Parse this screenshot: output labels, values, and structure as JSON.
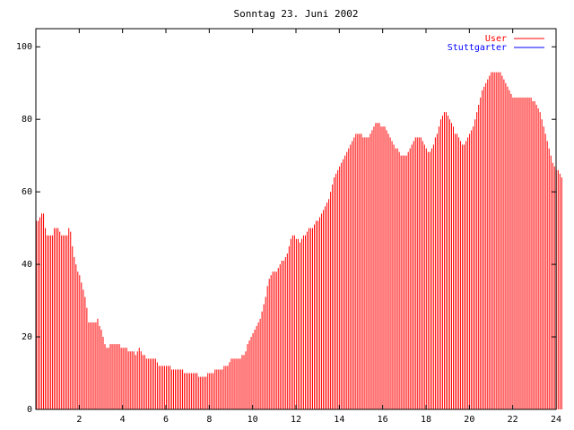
{
  "chart_data": {
    "type": "bar",
    "title": "Sonntag 23. Juni 2002",
    "xlabel": "",
    "ylabel": "",
    "xlim": [
      0,
      24
    ],
    "ylim": [
      0,
      105
    ],
    "x_ticks": [
      2,
      4,
      6,
      8,
      10,
      12,
      14,
      16,
      18,
      20,
      22,
      24
    ],
    "y_ticks": [
      0,
      20,
      40,
      60,
      80,
      100
    ],
    "grid": false,
    "legend_position": "top-right",
    "bar_interval_hours": 0.0833,
    "series": [
      {
        "name": "User",
        "color": "#ff0000",
        "values": [
          52,
          52,
          53,
          54,
          54,
          50,
          48,
          48,
          48,
          48,
          50,
          50,
          50,
          49,
          48,
          48,
          48,
          48,
          50,
          49,
          45,
          42,
          40,
          38,
          37,
          35,
          33,
          31,
          28,
          24,
          24,
          24,
          24,
          24,
          25,
          23,
          22,
          20,
          18,
          17,
          17,
          18,
          18,
          18,
          18,
          18,
          18,
          17,
          17,
          17,
          17,
          16,
          16,
          16,
          16,
          15,
          16,
          17,
          16,
          15,
          15,
          14,
          14,
          14,
          14,
          14,
          14,
          13,
          12,
          12,
          12,
          12,
          12,
          12,
          12,
          11,
          11,
          11,
          11,
          11,
          11,
          11,
          10,
          10,
          10,
          10,
          10,
          10,
          10,
          10,
          9,
          9,
          9,
          9,
          9,
          10,
          10,
          10,
          10,
          11,
          11,
          11,
          11,
          11,
          12,
          12,
          12,
          13,
          14,
          14,
          14,
          14,
          14,
          14,
          15,
          15,
          16,
          18,
          19,
          20,
          21,
          22,
          23,
          24,
          25,
          27,
          29,
          31,
          34,
          36,
          37,
          38,
          38,
          38,
          39,
          40,
          41,
          41,
          42,
          43,
          45,
          47,
          48,
          48,
          47,
          47,
          46,
          47,
          48,
          48,
          49,
          50,
          50,
          50,
          51,
          52,
          52,
          53,
          54,
          55,
          56,
          57,
          58,
          60,
          62,
          64,
          65,
          66,
          67,
          68,
          69,
          70,
          71,
          72,
          73,
          74,
          75,
          76,
          76,
          76,
          76,
          75,
          75,
          75,
          75,
          76,
          77,
          78,
          79,
          79,
          79,
          78,
          78,
          78,
          77,
          76,
          75,
          74,
          73,
          72,
          72,
          71,
          70,
          70,
          70,
          70,
          71,
          72,
          73,
          74,
          75,
          75,
          75,
          75,
          74,
          73,
          72,
          71,
          71,
          72,
          73,
          75,
          76,
          78,
          80,
          81,
          82,
          82,
          81,
          80,
          79,
          78,
          76,
          76,
          75,
          74,
          73,
          73,
          74,
          75,
          76,
          77,
          78,
          80,
          82,
          84,
          86,
          88,
          89,
          90,
          91,
          92,
          93,
          93,
          93,
          93,
          93,
          93,
          92,
          91,
          90,
          89,
          88,
          87,
          86,
          86,
          86,
          86,
          86,
          86,
          86,
          86,
          86,
          86,
          86,
          85,
          85,
          84,
          83,
          82,
          80,
          78,
          76,
          74,
          72,
          70,
          68,
          67,
          66,
          66,
          65,
          64
        ]
      },
      {
        "name": "Stuttgarter",
        "color": "#0000ff",
        "values": [
          0,
          0,
          0,
          0,
          0,
          0,
          0,
          0,
          0,
          0,
          0,
          0,
          0,
          0,
          0,
          0,
          0,
          0,
          0,
          0,
          0,
          0,
          0,
          0,
          0,
          0,
          0,
          0,
          0,
          0,
          0,
          0,
          0,
          0,
          0,
          0,
          0,
          0,
          0,
          0,
          0,
          0,
          0,
          0,
          0,
          0,
          0,
          0,
          0,
          0,
          0,
          0,
          0,
          0,
          0,
          0,
          0,
          0,
          0,
          0,
          0,
          0,
          0,
          0,
          0,
          0,
          0,
          0,
          0,
          0,
          0,
          0,
          0,
          0,
          0,
          0,
          0,
          0,
          0,
          0,
          0,
          0,
          0,
          0,
          0,
          0,
          0,
          0,
          0,
          0,
          0,
          0,
          0,
          0,
          0,
          0,
          0,
          0,
          0,
          0,
          0,
          0,
          0,
          0,
          0,
          0,
          0,
          0,
          0,
          0,
          0,
          0,
          0,
          0,
          0,
          0,
          0,
          0,
          0,
          0,
          0,
          0,
          0,
          0,
          0,
          0,
          0,
          0,
          0,
          0,
          0,
          0,
          0,
          0,
          0,
          0,
          0,
          0,
          0,
          0,
          0,
          0,
          0,
          0,
          0,
          0,
          0,
          0,
          0,
          0,
          0,
          0,
          0,
          0,
          0,
          0,
          0,
          0,
          0,
          0,
          0,
          0,
          0,
          0,
          0,
          0,
          0,
          0,
          0,
          0,
          0,
          0,
          0,
          0,
          0,
          0,
          0,
          0,
          0,
          0,
          0,
          0,
          0,
          0,
          0,
          0,
          0,
          0,
          0,
          0,
          0,
          0,
          0,
          0,
          0,
          0,
          0,
          0,
          0,
          0,
          0,
          0,
          0,
          0,
          0,
          0,
          0,
          0,
          0,
          0,
          0,
          0,
          0,
          0,
          0,
          0,
          0,
          0,
          0,
          0,
          0,
          0,
          0,
          0,
          0,
          0,
          0,
          0,
          0,
          0,
          0,
          0,
          0,
          0,
          0,
          0,
          0,
          0,
          0,
          0,
          0,
          0,
          0,
          0,
          0,
          0,
          0,
          0,
          0,
          0,
          0,
          0,
          0,
          0,
          0,
          0,
          0,
          0,
          0,
          0,
          0,
          0,
          0,
          0,
          0,
          0,
          0,
          0,
          0,
          0,
          0,
          0,
          0,
          0,
          0,
          0,
          0,
          0,
          0,
          0,
          0,
          0,
          0,
          0,
          0,
          0,
          0,
          0
        ]
      }
    ]
  }
}
